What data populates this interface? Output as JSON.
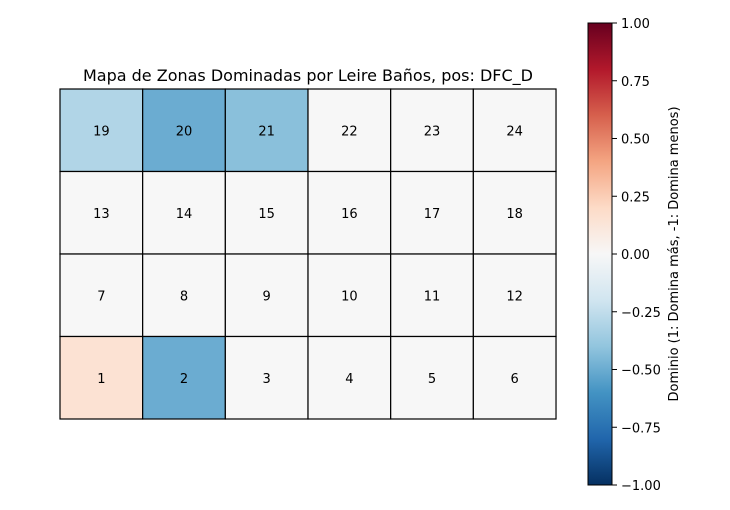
{
  "chart_data": {
    "type": "heatmap",
    "title": "Mapa de Zonas Dominadas por Leire Baños, pos: DFC_D",
    "grid": {
      "rows": 4,
      "cols": 6
    },
    "zones": [
      {
        "zone": "19",
        "row": 0,
        "col": 0,
        "value": -0.3
      },
      {
        "zone": "20",
        "row": 0,
        "col": 1,
        "value": -0.5
      },
      {
        "zone": "21",
        "row": 0,
        "col": 2,
        "value": -0.42
      },
      {
        "zone": "22",
        "row": 0,
        "col": 3,
        "value": 0
      },
      {
        "zone": "23",
        "row": 0,
        "col": 4,
        "value": 0
      },
      {
        "zone": "24",
        "row": 0,
        "col": 5,
        "value": 0
      },
      {
        "zone": "13",
        "row": 1,
        "col": 0,
        "value": 0
      },
      {
        "zone": "14",
        "row": 1,
        "col": 1,
        "value": 0
      },
      {
        "zone": "15",
        "row": 1,
        "col": 2,
        "value": 0
      },
      {
        "zone": "16",
        "row": 1,
        "col": 3,
        "value": 0
      },
      {
        "zone": "17",
        "row": 1,
        "col": 4,
        "value": 0
      },
      {
        "zone": "18",
        "row": 1,
        "col": 5,
        "value": 0
      },
      {
        "zone": "7",
        "row": 2,
        "col": 0,
        "value": 0
      },
      {
        "zone": "8",
        "row": 2,
        "col": 1,
        "value": 0
      },
      {
        "zone": "9",
        "row": 2,
        "col": 2,
        "value": 0
      },
      {
        "zone": "10",
        "row": 2,
        "col": 3,
        "value": 0
      },
      {
        "zone": "11",
        "row": 2,
        "col": 4,
        "value": 0
      },
      {
        "zone": "12",
        "row": 2,
        "col": 5,
        "value": 0
      },
      {
        "zone": "1",
        "row": 3,
        "col": 0,
        "value": 0.15
      },
      {
        "zone": "2",
        "row": 3,
        "col": 1,
        "value": -0.5
      },
      {
        "zone": "3",
        "row": 3,
        "col": 2,
        "value": 0
      },
      {
        "zone": "4",
        "row": 3,
        "col": 3,
        "value": 0
      },
      {
        "zone": "5",
        "row": 3,
        "col": 4,
        "value": 0
      },
      {
        "zone": "6",
        "row": 3,
        "col": 5,
        "value": 0
      }
    ],
    "colorbar": {
      "label": "Dominio (1: Domina más, -1: Domina menos)",
      "range": [
        -1,
        1
      ],
      "colormap": "RdBu_r",
      "ticks": [
        "1.00",
        "0.75",
        "0.50",
        "0.25",
        "0.00",
        "−0.25",
        "−0.50",
        "−0.75",
        "−1.00"
      ]
    }
  }
}
